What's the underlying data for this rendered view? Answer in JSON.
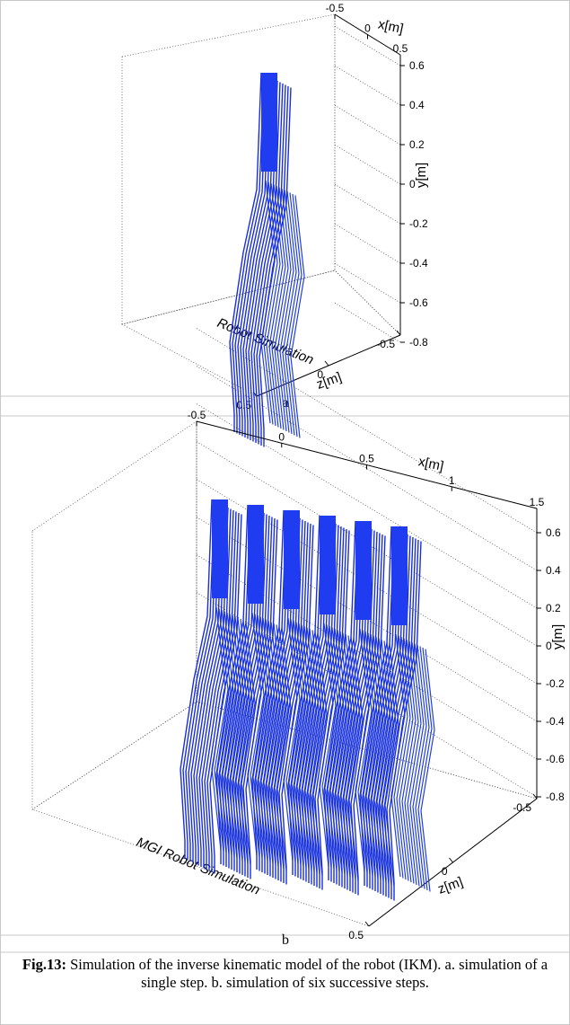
{
  "figure": {
    "panels": [
      {
        "label": "a",
        "title": "Robot Simulation",
        "x_label": "x[m]",
        "y_label": "y[m]",
        "z_label": "z[m]",
        "x_ticks": [
          -0.5,
          0,
          0.5
        ],
        "y_ticks": [
          0.6,
          0.4,
          0.2,
          0,
          -0.2,
          -0.4,
          -0.6,
          -0.8
        ],
        "z_ticks": [
          -0.5,
          0,
          0.5
        ]
      },
      {
        "label": "b",
        "title": "MGI Robot Simulation",
        "x_label": "x[m]",
        "y_label": "y[m]",
        "z_label": "z[m]",
        "x_ticks": [
          -0.5,
          0,
          0.5,
          1,
          1.5
        ],
        "y_ticks": [
          0.6,
          0.4,
          0.2,
          0,
          -0.2,
          -0.4,
          -0.6,
          -0.8
        ],
        "z_ticks": [
          -0.5,
          0,
          0.5
        ]
      }
    ],
    "caption": {
      "bold": "Fig.13:",
      "text": "Simulation of the inverse kinematic model of the robot (IKM). a. simulation of a single step. b. simulation of six successive steps."
    }
  }
}
